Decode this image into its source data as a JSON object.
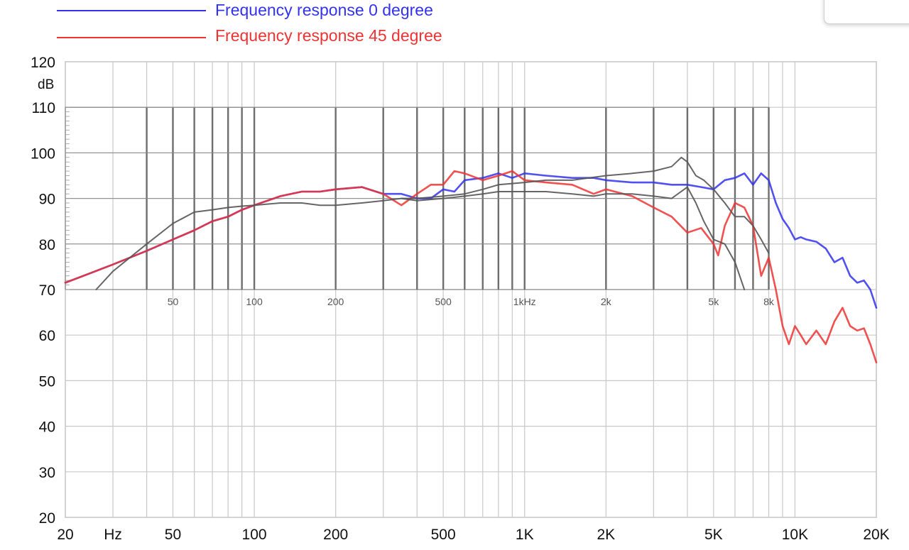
{
  "legend": [
    {
      "label": "Frequency response 0 degree",
      "color": "#3333ee"
    },
    {
      "label": "Frequency response 45 degree",
      "color": "#ee3333"
    }
  ],
  "chart_data": [
    {
      "type": "line",
      "title": "",
      "xlabel": "",
      "ylabel": "dB",
      "xscale": "log",
      "xlim": [
        20,
        20000
      ],
      "ylim": [
        20,
        120
      ],
      "grid": true,
      "legend_position": "top-left",
      "x_ticks": [
        {
          "value": 20,
          "label": "20"
        },
        {
          "value": 30,
          "label": "Hz"
        },
        {
          "value": 50,
          "label": "50"
        },
        {
          "value": 100,
          "label": "100"
        },
        {
          "value": 200,
          "label": "200"
        },
        {
          "value": 500,
          "label": "500"
        },
        {
          "value": 1000,
          "label": "1K"
        },
        {
          "value": 2000,
          "label": "2K"
        },
        {
          "value": 5000,
          "label": "5K"
        },
        {
          "value": 10000,
          "label": "10K"
        },
        {
          "value": 20000,
          "label": "20K"
        }
      ],
      "y_ticks": [
        {
          "value": 20,
          "label": "20"
        },
        {
          "value": 30,
          "label": "30"
        },
        {
          "value": 40,
          "label": "40"
        },
        {
          "value": 50,
          "label": "50"
        },
        {
          "value": 60,
          "label": "60"
        },
        {
          "value": 70,
          "label": "70"
        },
        {
          "value": 80,
          "label": "80"
        },
        {
          "value": 90,
          "label": "90"
        },
        {
          "value": 100,
          "label": "100"
        },
        {
          "value": 110,
          "label": "110"
        },
        {
          "value": 120,
          "label": "120"
        }
      ],
      "series": [
        {
          "name": "Frequency response 0 degree",
          "color": "#3333ee",
          "x": [
            20,
            30,
            40,
            50,
            60,
            70,
            80,
            90,
            100,
            125,
            150,
            175,
            200,
            250,
            300,
            350,
            400,
            450,
            500,
            550,
            600,
            700,
            800,
            900,
            1000,
            1200,
            1500,
            1800,
            2000,
            2500,
            3000,
            3500,
            4000,
            4500,
            5000,
            5500,
            6000,
            6500,
            7000,
            7500,
            8000,
            8500,
            9000,
            9500,
            10000,
            10500,
            11000,
            12000,
            13000,
            14000,
            15000,
            16000,
            17000,
            18000,
            19000,
            20000
          ],
          "y": [
            71.5,
            75.5,
            78.5,
            81,
            83,
            85,
            86,
            87.5,
            88.5,
            90.5,
            91.5,
            91.5,
            92,
            92.5,
            91,
            91,
            90,
            90,
            92,
            91.5,
            94,
            94.5,
            95.5,
            94.5,
            95.5,
            95,
            94.5,
            94.5,
            94,
            93.5,
            93.5,
            93,
            93,
            92.5,
            92,
            94,
            94.5,
            95.5,
            93,
            95.5,
            94,
            89,
            85.5,
            83.5,
            81,
            81.5,
            81,
            80.5,
            79,
            76,
            77,
            73,
            71.5,
            72,
            70,
            66
          ]
        },
        {
          "name": "Frequency response 45 degree",
          "color": "#ee3333",
          "x": [
            20,
            30,
            40,
            50,
            60,
            70,
            80,
            90,
            100,
            125,
            150,
            175,
            200,
            250,
            300,
            350,
            400,
            450,
            500,
            550,
            600,
            700,
            800,
            900,
            1000,
            1200,
            1500,
            1800,
            2000,
            2500,
            3000,
            3500,
            4000,
            4500,
            5000,
            5200,
            5500,
            6000,
            6500,
            7000,
            7500,
            8000,
            8500,
            9000,
            9500,
            10000,
            10500,
            11000,
            12000,
            13000,
            14000,
            15000,
            16000,
            17000,
            18000,
            19000,
            20000
          ],
          "y": [
            71.5,
            75.5,
            78.5,
            81,
            83,
            85,
            86,
            87.5,
            88.5,
            90.5,
            91.5,
            91.5,
            92,
            92.5,
            91,
            88.5,
            91,
            93,
            93,
            96,
            95.5,
            94,
            95,
            96,
            94,
            93.5,
            93,
            91,
            92,
            90.5,
            88,
            86,
            82.5,
            83.5,
            80,
            77.5,
            84,
            89,
            88,
            84,
            73,
            77,
            70,
            62,
            58,
            62,
            60,
            58,
            61,
            58,
            63,
            66,
            62,
            61,
            61.5,
            58,
            54
          ]
        },
        {
          "name": "",
          "color": "#555555",
          "x": [
            26,
            30,
            40,
            50,
            60,
            70,
            80,
            90,
            100,
            125,
            150,
            175,
            200,
            250,
            300,
            350,
            400,
            500,
            600,
            700,
            800,
            1000,
            1200,
            1500,
            2000,
            2500,
            3000,
            3500,
            3800,
            4000,
            4300,
            4600,
            5000,
            5500,
            6000,
            6500,
            7000,
            7500,
            8000
          ],
          "y": [
            70,
            74,
            80,
            84.5,
            87,
            87.5,
            88,
            88.3,
            88.5,
            89,
            89,
            88.5,
            88.5,
            89,
            89.5,
            90,
            90,
            90.5,
            91,
            92,
            93,
            93.5,
            94,
            94,
            95,
            95.5,
            96,
            97,
            99,
            98,
            95,
            94,
            92,
            89,
            86,
            86,
            84,
            81,
            78
          ]
        },
        {
          "name": "",
          "color": "#555555",
          "x": [
            350,
            400,
            500,
            600,
            700,
            800,
            1000,
            1200,
            1500,
            1800,
            2000,
            2500,
            3000,
            3500,
            4000,
            4300,
            4600,
            5000,
            5500,
            6000,
            6500
          ],
          "y": [
            90,
            89.5,
            90,
            90.5,
            91,
            91.5,
            91.5,
            91.5,
            91,
            90.5,
            91,
            91,
            90.5,
            90,
            92.5,
            89,
            85,
            81,
            80,
            76,
            70
          ]
        }
      ]
    }
  ],
  "inset_chart": {
    "x_ticks": [
      {
        "value": 50,
        "label": "50"
      },
      {
        "value": 100,
        "label": "100"
      },
      {
        "value": 200,
        "label": "200"
      },
      {
        "value": 500,
        "label": "500"
      },
      {
        "value": 1000,
        "label": "1kHz"
      },
      {
        "value": 2000,
        "label": "2k"
      },
      {
        "value": 5000,
        "label": "5k"
      },
      {
        "value": 8000,
        "label": "8k"
      }
    ],
    "grid_freqs": [
      40,
      50,
      60,
      70,
      80,
      90,
      100,
      200,
      300,
      400,
      500,
      600,
      700,
      800,
      900,
      1000,
      2000,
      3000,
      4000,
      5000,
      6000,
      7000,
      8000
    ]
  }
}
